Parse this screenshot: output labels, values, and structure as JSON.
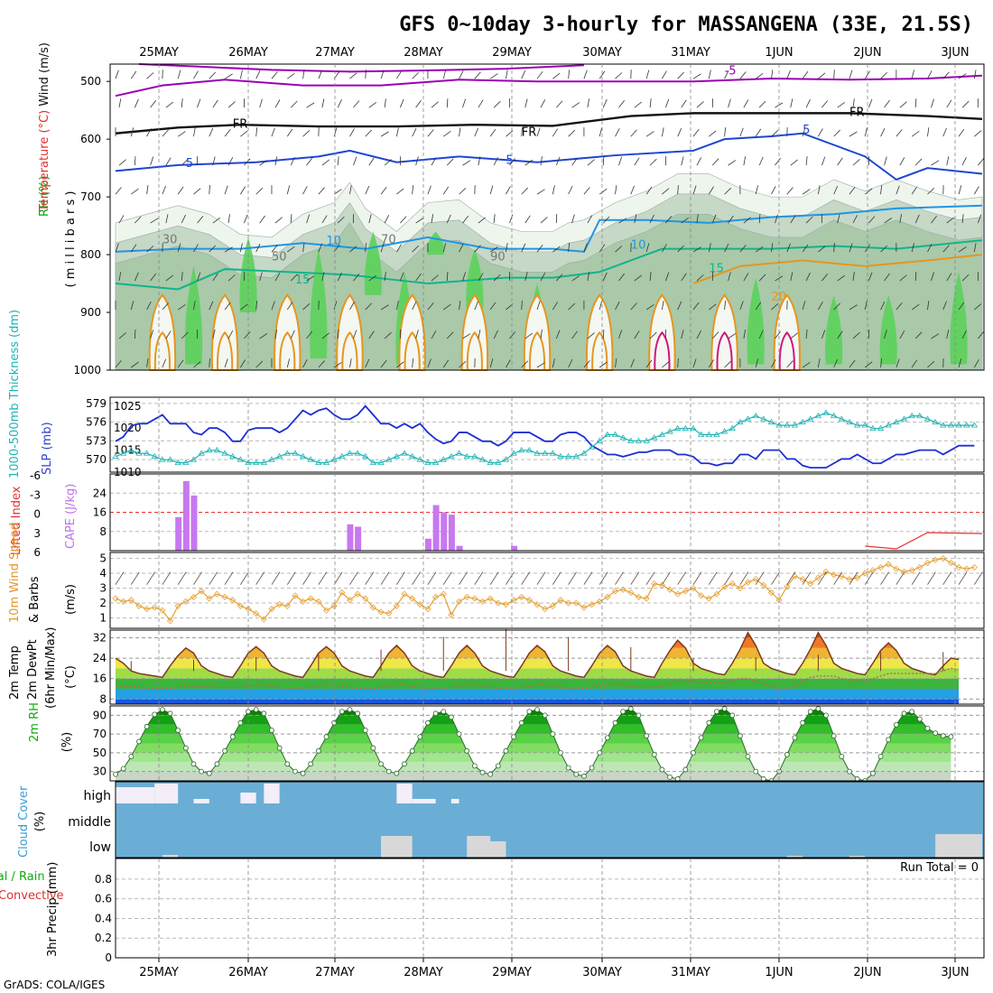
{
  "title": "GFS 0~10day 3-hourly for MASSANGENA (33E, 21.5S)",
  "footer": "GrADS: COLA/IGES",
  "dates": [
    "25MAY",
    "26MAY",
    "27MAY",
    "28MAY",
    "29MAY",
    "30MAY",
    "31MAY",
    "1JUN",
    "2JUN",
    "3JUN"
  ],
  "colors": {
    "temp_purple": "#9b00b4",
    "temp_blue": "#1e46d2",
    "temp_cyan": "#1e96e6",
    "temp_teal": "#10b48c",
    "temp_orange": "#e6961e",
    "temp_red": "#d2147d",
    "rh_dark": "#5ad25a",
    "rh_mid": "#c8d6c8",
    "thickness": "#1eb4b4",
    "slp": "#1e2ed2",
    "cape": "#c878f0",
    "lifted": "#e63232",
    "wind": "#e6a032",
    "cloud": "#6aaed6"
  },
  "labels": {
    "upper_wind": "Wind (m/s)",
    "upper_temp": "Temperature (°C)",
    "upper_rh": "RH (%)",
    "upper_pressure": "( m i l l i b a r s )",
    "thickness_label": "1000-500mb Thickness (dm)",
    "slp_label": "SLP (mb)",
    "lifted_label": "Lifted Index",
    "cape_label": "CAPE (J/kg)",
    "wind10_speed": "10m Wind Speed",
    "wind10_barbs": "& Barbs",
    "wind10_unit": "(m/s)",
    "temp2m_a": "2m Temp",
    "temp2m_b": "2m DewPt",
    "temp2m_c": "(6hr Min/Max)",
    "temp2m_unit": "(°C)",
    "rh2m": "2m RH",
    "rh2m_unit": "(%)",
    "cloud_label": "Cloud Cover",
    "cloud_unit": "(%)",
    "cloud_high": "high",
    "cloud_middle": "middle",
    "cloud_low": "low",
    "precip_a": "Total / Rain",
    "precip_b": "Convective",
    "precip_c": "3hr Precip (mm)",
    "run_total": "Run Total = 0"
  },
  "chart_data": [
    {
      "type": "contour",
      "panel": "upper-air",
      "ylabel": "( m i l l i b a r s )",
      "yticks": [
        "500",
        "600",
        "700",
        "800",
        "900",
        "1000"
      ],
      "contour_labels": {
        "temp_purple": "-5",
        "temp_black": "FR",
        "temp_blue": "5",
        "temp_cyan": "10",
        "temp_teal": "15",
        "temp_orange": "20",
        "rh": [
          "30",
          "50",
          "70",
          "90"
        ]
      }
    },
    {
      "type": "line",
      "panel": "thickness-slp",
      "yticks_left": [
        "579",
        "576",
        "573",
        "570"
      ],
      "yticks_right": [
        "1025",
        "1020",
        "1015",
        "1010"
      ],
      "series": [
        {
          "name": "SLP (mb)",
          "values": [
            1017,
            1018,
            1020.5,
            1021,
            1021,
            1022,
            1023,
            1021,
            1021,
            1021,
            1019,
            1018.5,
            1020,
            1020,
            1019,
            1017,
            1017,
            1019.5,
            1020,
            1020,
            1020,
            1019,
            1020,
            1022,
            1024,
            1023,
            1024,
            1024.5,
            1023,
            1022,
            1022,
            1023,
            1025,
            1023,
            1021,
            1021,
            1020,
            1021,
            1020,
            1021,
            1019,
            1017.5,
            1016.5,
            1017,
            1019,
            1019,
            1018,
            1017,
            1017,
            1016,
            1017,
            1019,
            1019,
            1019,
            1018,
            1017,
            1017,
            1018.5,
            1019,
            1019,
            1018,
            1016,
            1015,
            1014,
            1014,
            1013.5,
            1014,
            1014.5,
            1014.5,
            1015,
            1015,
            1015,
            1014,
            1014,
            1013.5,
            1012,
            1012,
            1011.5,
            1012,
            1012,
            1014,
            1014,
            1013,
            1015,
            1015,
            1015,
            1013,
            1013,
            1011.5,
            1011,
            1011,
            1011,
            1012,
            1013,
            1013,
            1014,
            1013,
            1012,
            1012,
            1013,
            1014,
            1014,
            1014.5,
            1015,
            1015,
            1015,
            1014,
            1015,
            1016,
            1016,
            1016
          ]
        },
        {
          "name": "1000-500mb Thickness (dm)",
          "values": [
            570.5,
            571,
            571.5,
            571,
            571,
            570.5,
            570,
            570,
            569.5,
            569.5,
            570,
            571,
            571.5,
            571.5,
            571,
            570.5,
            570,
            569.5,
            569.5,
            569.5,
            570,
            570.5,
            571,
            571,
            570.5,
            570,
            569.5,
            569.5,
            570,
            570.5,
            571,
            571,
            570.5,
            569.5,
            569.5,
            570,
            570.5,
            571,
            570.5,
            570,
            569.5,
            569.5,
            570,
            570.5,
            571,
            570.5,
            570.5,
            570,
            569.5,
            569.5,
            570,
            571,
            571.5,
            571.5,
            571,
            571,
            571,
            570.5,
            570.5,
            570.5,
            571,
            572,
            573,
            574,
            574,
            573.5,
            573,
            573,
            573,
            573.5,
            574,
            574.5,
            575,
            575,
            575,
            574,
            574,
            574,
            574.5,
            575,
            576,
            576.5,
            577,
            576.5,
            576,
            575.5,
            575.5,
            575.5,
            576,
            576.5,
            577,
            577.5,
            577,
            576.5,
            576,
            575.5,
            575.5,
            575,
            575,
            575.5,
            576,
            576.5,
            577,
            577,
            576.5,
            576,
            575.5,
            575.5,
            575.5,
            575.5,
            575.5
          ]
        }
      ]
    },
    {
      "type": "bar",
      "panel": "cape-lifted-index",
      "yticks_left": [
        "-6",
        "-3",
        "0",
        "3",
        "6"
      ],
      "yticks_right": [
        "24",
        "16",
        "8"
      ],
      "cape_bars": [
        {
          "t": 8,
          "v": 14
        },
        {
          "t": 9,
          "v": 29
        },
        {
          "t": 10,
          "v": 23
        },
        {
          "t": 30,
          "v": 11
        },
        {
          "t": 31,
          "v": 10
        },
        {
          "t": 40,
          "v": 5
        },
        {
          "t": 41,
          "v": 19
        },
        {
          "t": 42,
          "v": 16
        },
        {
          "t": 43,
          "v": 15
        },
        {
          "t": 44,
          "v": 2
        },
        {
          "t": 51,
          "v": 2
        }
      ]
    },
    {
      "type": "line",
      "panel": "10m-wind",
      "yticks": [
        "5",
        "4",
        "3",
        "2",
        "1"
      ],
      "series": [
        {
          "name": "10m Wind Speed",
          "values": [
            2.3,
            2.1,
            2.2,
            1.8,
            1.6,
            1.7,
            1.5,
            0.8,
            1.8,
            2.1,
            2.4,
            2.8,
            2.3,
            2.6,
            2.4,
            2.2,
            1.8,
            1.6,
            1.3,
            0.9,
            1.6,
            1.9,
            1.8,
            2.5,
            2.1,
            2.3,
            2.1,
            1.5,
            1.8,
            2.7,
            2.2,
            2.6,
            2.3,
            1.7,
            1.4,
            1.3,
            1.8,
            2.6,
            2.3,
            1.9,
            1.6,
            2.4,
            2.6,
            1.2,
            2.1,
            2.4,
            2.3,
            2.1,
            2.3,
            2.0,
            1.9,
            2.2,
            2.4,
            2.2,
            1.9,
            1.6,
            1.8,
            2.2,
            2.0,
            2.0,
            1.7,
            1.9,
            2.1,
            2.4,
            2.8,
            2.9,
            2.7,
            2.4,
            2.3,
            3.3,
            3.2,
            2.9,
            2.6,
            2.8,
            3.0,
            2.5,
            2.3,
            2.6,
            3.1,
            3.3,
            3.0,
            3.4,
            3.6,
            3.2,
            2.7,
            2.2,
            3.1,
            3.8,
            3.6,
            3.3,
            3.7,
            4.1,
            3.9,
            3.8,
            3.6,
            3.7,
            4.0,
            4.2,
            4.4,
            4.6,
            4.3,
            4.1,
            4.2,
            4.4,
            4.7,
            4.9,
            5.0,
            4.7,
            4.4,
            4.3,
            4.4
          ]
        }
      ]
    },
    {
      "type": "area",
      "panel": "2m-temp",
      "yticks": [
        "32",
        "24",
        "16",
        "8"
      ],
      "series": [
        {
          "name": "2m Temp",
          "values": [
            24,
            22,
            19,
            18,
            17.5,
            17,
            16.5,
            21,
            25,
            28,
            26,
            21,
            19,
            18,
            17,
            16.5,
            21,
            26,
            28.5,
            26,
            21,
            19,
            18,
            17,
            16.5,
            21,
            26,
            28.5,
            26,
            21,
            19,
            18,
            17,
            16.5,
            21,
            26,
            29,
            26,
            21,
            19,
            18,
            17,
            16.5,
            21,
            26,
            29,
            26,
            21,
            19,
            18,
            17,
            16.5,
            21,
            26,
            29,
            26.5,
            21,
            19,
            18,
            17,
            16.5,
            21,
            26,
            29,
            26.5,
            21,
            19,
            18,
            17,
            16.5,
            22,
            27,
            31,
            28,
            22,
            20,
            19,
            18,
            17.5,
            22,
            27.5,
            34,
            29,
            22,
            20,
            19,
            18,
            17.5,
            22,
            27.5,
            34,
            29,
            22,
            20,
            19,
            18,
            17.5,
            22,
            27,
            30,
            27,
            22,
            20,
            19,
            18,
            17.5,
            21,
            24,
            23.5
          ]
        },
        {
          "name": "2m DewPt",
          "values": [
            13,
            13,
            13,
            12.5,
            12,
            12,
            12,
            12,
            12.5,
            13,
            13,
            13,
            13,
            12.5,
            12.5,
            12.5,
            12.5,
            13,
            13.5,
            13.5,
            13,
            12.5,
            12,
            12,
            12,
            12.5,
            13,
            13.5,
            13.5,
            13,
            12.5,
            12,
            12,
            12,
            12.5,
            13,
            13.5,
            13.5,
            13,
            12.5,
            12,
            12,
            12,
            12.5,
            13,
            13.5,
            13.5,
            13,
            12.5,
            12,
            12,
            12,
            12.5,
            13,
            13.5,
            13.5,
            13,
            12.5,
            12,
            12,
            12,
            12.5,
            13,
            14,
            14,
            13.5,
            13,
            12.5,
            12.5,
            12.5,
            13,
            14,
            15,
            15,
            15,
            14.5,
            14.5,
            14.5,
            14.5,
            15,
            16,
            16,
            15,
            14,
            13,
            12,
            12,
            13,
            15,
            16.5,
            17,
            17,
            17,
            16,
            15.5,
            15,
            15,
            16,
            17,
            18,
            18,
            18,
            18,
            18,
            18,
            18,
            19,
            20,
            19.5
          ]
        }
      ]
    },
    {
      "type": "area",
      "panel": "2m-rh",
      "yticks": [
        "90",
        "70",
        "50",
        "30"
      ],
      "series": [
        {
          "name": "2m RH",
          "values": [
            27,
            33,
            46,
            62,
            78,
            91,
            96,
            92,
            74,
            55,
            38,
            30,
            28,
            38,
            52,
            67,
            82,
            94,
            96,
            92,
            74,
            55,
            38,
            30,
            28,
            38,
            52,
            67,
            82,
            94,
            96,
            92,
            74,
            55,
            38,
            30,
            28,
            38,
            52,
            67,
            82,
            92,
            94,
            88,
            70,
            52,
            36,
            29,
            27,
            36,
            52,
            67,
            82,
            94,
            96,
            90,
            70,
            50,
            34,
            27,
            25,
            34,
            50,
            66,
            82,
            94,
            97,
            90,
            68,
            48,
            32,
            24,
            22,
            32,
            50,
            66,
            82,
            94,
            97,
            90,
            68,
            46,
            30,
            22,
            20,
            30,
            48,
            66,
            82,
            94,
            97,
            90,
            68,
            46,
            30,
            22,
            20,
            28,
            46,
            64,
            80,
            92,
            94,
            86,
            76,
            71,
            68,
            67
          ]
        }
      ]
    },
    {
      "type": "heatmap",
      "panel": "cloud-cover",
      "rows": [
        "high",
        "middle",
        "low"
      ]
    },
    {
      "type": "bar",
      "panel": "3hr-precip",
      "yticks": [
        "0.8",
        "0.6",
        "0.4",
        "0.2",
        "0"
      ],
      "values": []
    }
  ]
}
